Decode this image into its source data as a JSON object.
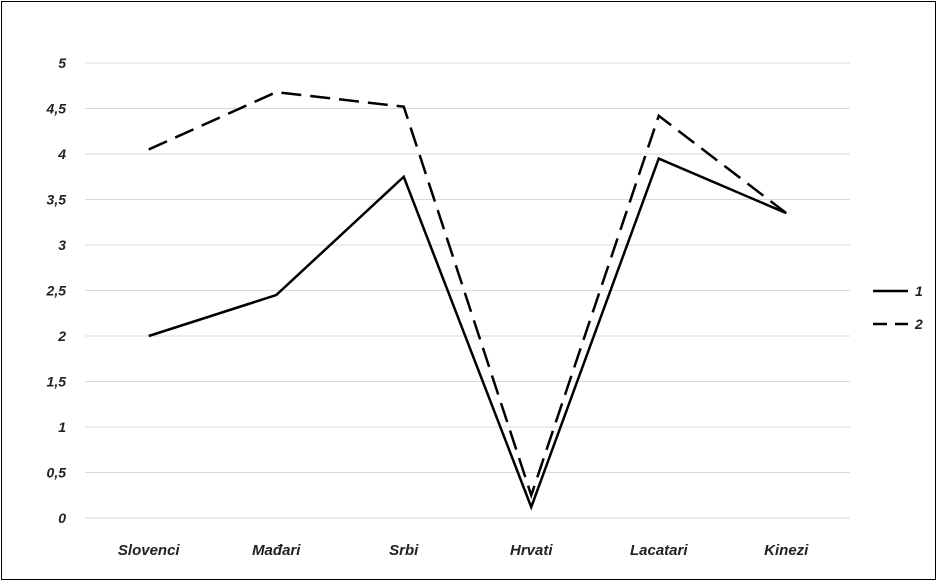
{
  "chart_data": {
    "type": "line",
    "categories": [
      "Slovenci",
      "Mađari",
      "Srbi",
      "Hrvati",
      "Lacatari",
      "Kinezi"
    ],
    "ylim": [
      0,
      5
    ],
    "yticks": [
      "0",
      "0,5",
      "1",
      "1,5",
      "2",
      "2,5",
      "3",
      "3,5",
      "4",
      "4,5",
      "5"
    ],
    "grid": true,
    "legend_position": "right",
    "series": [
      {
        "name": "1",
        "style": "solid",
        "values": [
          2.0,
          2.45,
          3.75,
          0.12,
          3.95,
          3.35
        ]
      },
      {
        "name": "2",
        "style": "dashed",
        "values": [
          4.05,
          4.68,
          4.52,
          0.25,
          4.42,
          3.35
        ]
      }
    ],
    "colors": {
      "line": "#000000",
      "grid": "#d9d9d9",
      "text": "#222222"
    }
  }
}
